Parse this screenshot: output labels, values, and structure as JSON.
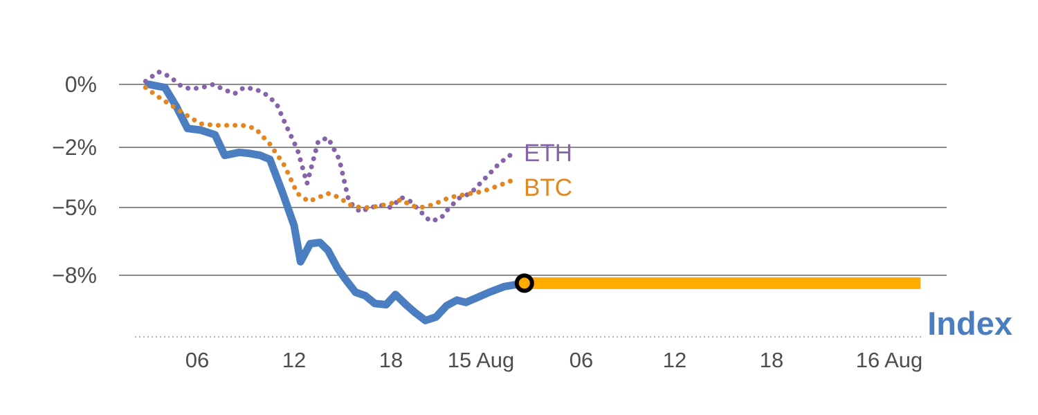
{
  "chart": {
    "background": "#ffffff",
    "colors": {
      "index_line": "#4a7ec0",
      "index_flat_band": "#ffab00",
      "btc_line": "#e2861f",
      "eth_line": "#8562aa",
      "gridline": "#8c8c8c",
      "axis_text": "#4d4d4d",
      "baseline_dash": "#b3b3b3",
      "marker_ring": "#000000",
      "marker_fill": "#ffab00"
    }
  },
  "chart_data": {
    "type": "line",
    "title": "",
    "xlabel": "",
    "ylabel": "",
    "y_unit": "percent change",
    "x_note": "hour-of-day ticks across 14-16 Aug",
    "grid": true,
    "legend_position": "inline-right-of-lines",
    "y_ticks": {
      "values": [
        0,
        -2,
        -5,
        -8
      ],
      "labels": [
        "0%",
        "−2%",
        "−5%",
        "−8%"
      ]
    },
    "x_ticks": {
      "values": [
        6,
        12,
        18,
        24,
        30,
        36,
        42,
        48
      ],
      "labels": [
        "06",
        "12",
        "18",
        "15 Aug",
        "06",
        "12",
        "18",
        "16 Aug"
      ]
    },
    "ylim": [
      -10.8,
      0.8
    ],
    "series": [
      {
        "name": "ETH",
        "color": "#8562aa",
        "line_style": "dotted",
        "x": [
          2.8,
          3.6,
          4.3,
          5.0,
          5.6,
          6.3,
          7.0,
          7.6,
          8.3,
          8.9,
          9.6,
          10.2,
          10.9,
          11.5,
          12.2,
          12.8,
          13.5,
          14.1,
          14.8,
          15.4,
          16.1,
          16.7,
          17.4,
          18.0,
          18.7,
          19.3,
          20.0,
          20.6,
          21.3,
          21.9,
          22.6,
          23.3,
          24.3,
          25.1,
          25.9
        ],
        "y": [
          0.1,
          0.4,
          0.25,
          -0.05,
          -0.15,
          -0.1,
          0.0,
          -0.15,
          -0.3,
          -0.1,
          -0.15,
          -0.3,
          -0.6,
          -1.3,
          -2.1,
          -3.8,
          -1.8,
          -1.7,
          -2.6,
          -4.7,
          -5.2,
          -5.0,
          -4.9,
          -5.0,
          -4.5,
          -4.7,
          -5.2,
          -5.6,
          -5.5,
          -5.0,
          -4.5,
          -4.3,
          -3.5,
          -2.8,
          -2.3
        ]
      },
      {
        "name": "BTC",
        "color": "#e2861f",
        "line_style": "dotted",
        "x": [
          2.8,
          3.6,
          4.5,
          5.4,
          6.2,
          7.1,
          7.9,
          8.8,
          9.6,
          10.5,
          11.4,
          12.2,
          12.9,
          13.5,
          14.1,
          14.8,
          15.4,
          16.1,
          16.7,
          17.4,
          18.0,
          18.7,
          19.3,
          20.0,
          20.6,
          21.3,
          21.9,
          22.6,
          23.3,
          24.1,
          25.1,
          26.0
        ],
        "y": [
          -0.1,
          -0.4,
          -0.7,
          -1.0,
          -1.25,
          -1.3,
          -1.3,
          -1.3,
          -1.4,
          -1.9,
          -2.9,
          -4.3,
          -4.7,
          -4.5,
          -4.3,
          -4.5,
          -4.85,
          -5.0,
          -5.0,
          -4.9,
          -4.8,
          -4.6,
          -4.9,
          -5.0,
          -4.9,
          -4.7,
          -4.5,
          -4.4,
          -4.3,
          -4.2,
          -3.9,
          -3.6
        ]
      },
      {
        "name": "Index",
        "color": "#4a7ec0",
        "line_style": "solid",
        "x": [
          3.0,
          4.0,
          4.7,
          5.4,
          6.2,
          7.1,
          7.7,
          8.6,
          9.2,
          9.9,
          10.5,
          11.3,
          12.0,
          12.4,
          13.0,
          13.6,
          14.1,
          14.7,
          15.2,
          15.8,
          16.4,
          17.0,
          17.7,
          18.3,
          19.0,
          19.6,
          20.3,
          21.0,
          21.7,
          22.4,
          23.0,
          23.7,
          24.5,
          25.4,
          26.6
        ],
        "y": [
          0.0,
          -0.1,
          -0.7,
          -1.4,
          -1.45,
          -1.6,
          -2.4,
          -2.25,
          -2.3,
          -2.4,
          -2.6,
          -4.3,
          -5.8,
          -7.4,
          -6.6,
          -6.55,
          -6.9,
          -7.7,
          -8.2,
          -8.75,
          -8.9,
          -9.25,
          -9.3,
          -8.85,
          -9.3,
          -9.65,
          -10.0,
          -9.85,
          -9.35,
          -9.1,
          -9.2,
          -9.0,
          -8.75,
          -8.5,
          -8.35
        ]
      },
      {
        "name": "Index (flat)",
        "color": "#ffab00",
        "line_style": "solid",
        "width": "thick",
        "x": [
          26.6,
          49.6
        ],
        "y": [
          -8.35,
          -8.35
        ]
      }
    ],
    "marker": {
      "series": "Index",
      "x": 26.6,
      "y": -8.35,
      "shape": "circle",
      "ring_color": "#000000",
      "fill_color": "#ffab00"
    }
  }
}
